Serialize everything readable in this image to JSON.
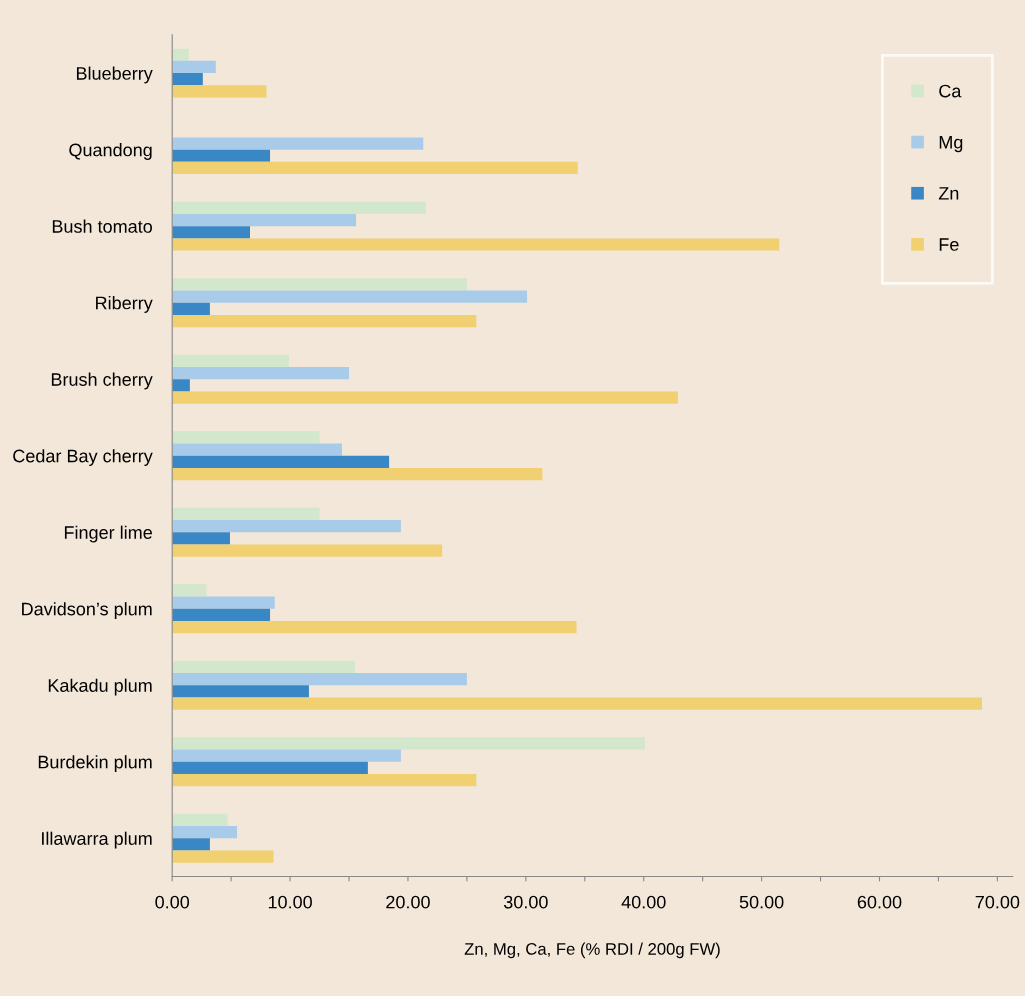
{
  "chart_data": {
    "type": "bar",
    "orientation": "horizontal",
    "xlabel": "Zn, Mg, Ca, Fe (% RDI / 200g FW)",
    "categories": [
      "Blueberry",
      "Quandong",
      "Bush tomato",
      "Riberry",
      "Brush cherry",
      "Cedar Bay cherry",
      "Finger lime",
      "Davidson’s plum",
      "Kakadu plum",
      "Burdekin plum",
      "Illawarra plum"
    ],
    "series": [
      {
        "name": "Ca",
        "color": "#d2e7cb",
        "values": [
          1.4,
          null,
          21.5,
          25.0,
          9.9,
          12.5,
          12.5,
          2.9,
          15.5,
          40.1,
          4.7
        ]
      },
      {
        "name": "Mg",
        "color": "#a9cbea",
        "values": [
          3.7,
          21.3,
          15.6,
          30.1,
          15.0,
          14.4,
          19.4,
          8.7,
          25.0,
          19.4,
          5.5
        ]
      },
      {
        "name": "Zn",
        "color": "#3a87c6",
        "values": [
          2.6,
          8.3,
          6.6,
          3.2,
          1.5,
          18.4,
          4.9,
          8.3,
          11.6,
          16.6,
          3.2
        ]
      },
      {
        "name": "Fe",
        "color": "#f0d070",
        "values": [
          8.0,
          34.4,
          51.5,
          25.8,
          42.9,
          31.4,
          22.9,
          34.3,
          68.7,
          25.8,
          8.6
        ]
      }
    ],
    "xlim": [
      0,
      71.3
    ],
    "xticks": [
      {
        "value": 0,
        "label": "0.00"
      },
      {
        "value": 5,
        "label": null
      },
      {
        "value": 10,
        "label": "10.00"
      },
      {
        "value": 15,
        "label": null
      },
      {
        "value": 20,
        "label": "20.00"
      },
      {
        "value": 25,
        "label": null
      },
      {
        "value": 30,
        "label": "30.00"
      },
      {
        "value": 35,
        "label": null
      },
      {
        "value": 40,
        "label": "40.00"
      },
      {
        "value": 45,
        "label": null
      },
      {
        "value": 50,
        "label": "50.00"
      },
      {
        "value": 55,
        "label": null
      },
      {
        "value": 60,
        "label": "60.00"
      },
      {
        "value": 65,
        "label": null
      },
      {
        "value": 70,
        "label": "70.00"
      }
    ],
    "grid": false,
    "legend": "top right"
  }
}
